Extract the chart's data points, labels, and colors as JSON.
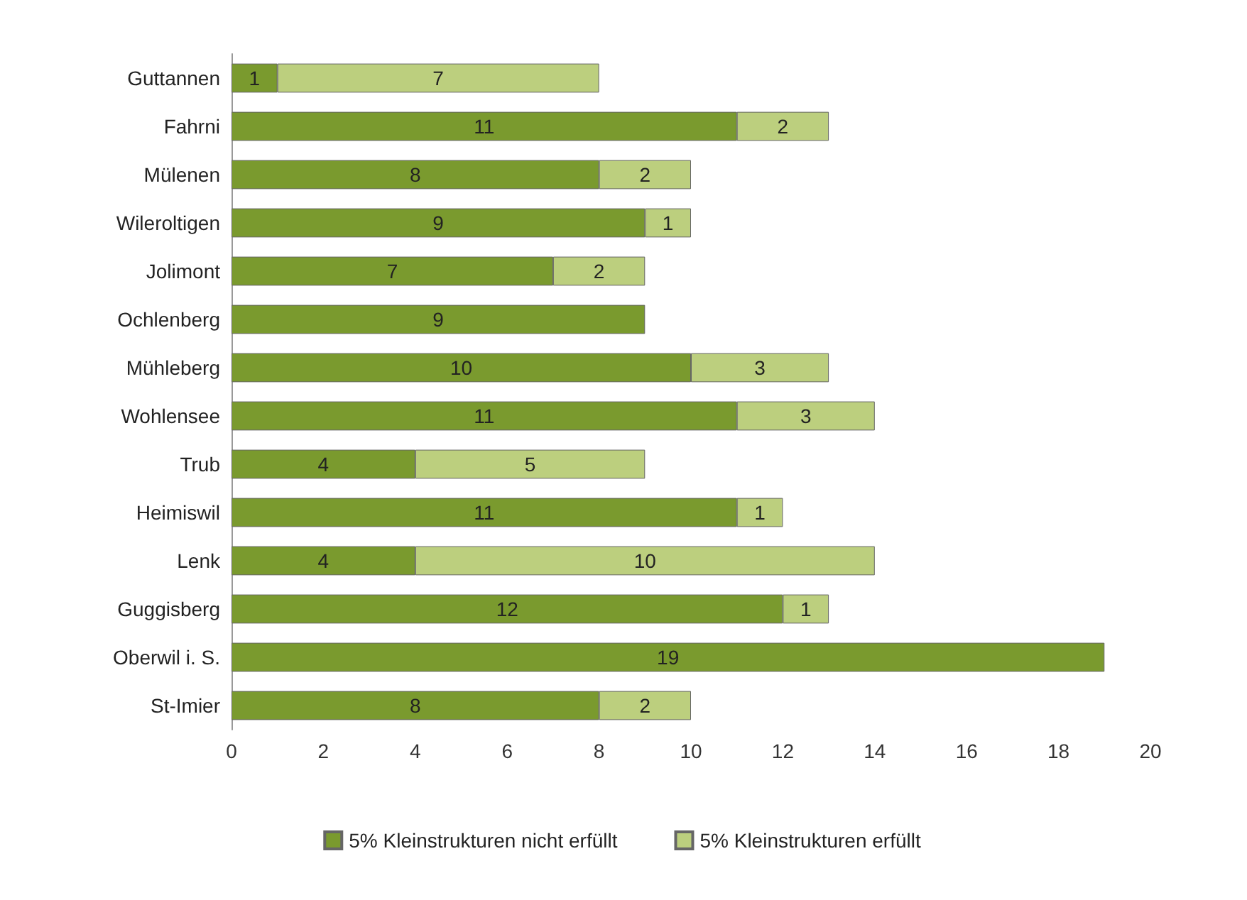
{
  "chart_data": {
    "type": "bar",
    "orientation": "horizontal",
    "stacked": true,
    "data_labels": true,
    "categories": [
      "Guttannen",
      "Fahrni",
      "Mülenen",
      "Wileroltigen",
      "Jolimont",
      "Ochlenberg",
      "Mühleberg",
      "Wohlensee",
      "Trub",
      "Heimiswil",
      "Lenk",
      "Guggisberg",
      "Oberwil i. S.",
      "St-Imier"
    ],
    "series": [
      {
        "name": "5% Kleinstrukturen nicht erfüllt",
        "color": "#7a9a2e",
        "values": [
          1,
          11,
          8,
          9,
          7,
          9,
          10,
          11,
          4,
          11,
          4,
          12,
          19,
          8
        ]
      },
      {
        "name": "5% Kleinstrukturen erfüllt",
        "color": "#bccf7e",
        "values": [
          7,
          2,
          2,
          1,
          2,
          null,
          3,
          3,
          5,
          1,
          10,
          1,
          null,
          2
        ]
      }
    ],
    "xlim": [
      0,
      20
    ],
    "xticks": [
      0,
      2,
      4,
      6,
      8,
      10,
      12,
      14,
      16,
      18,
      20
    ],
    "grid": false,
    "legend": "bottom"
  }
}
